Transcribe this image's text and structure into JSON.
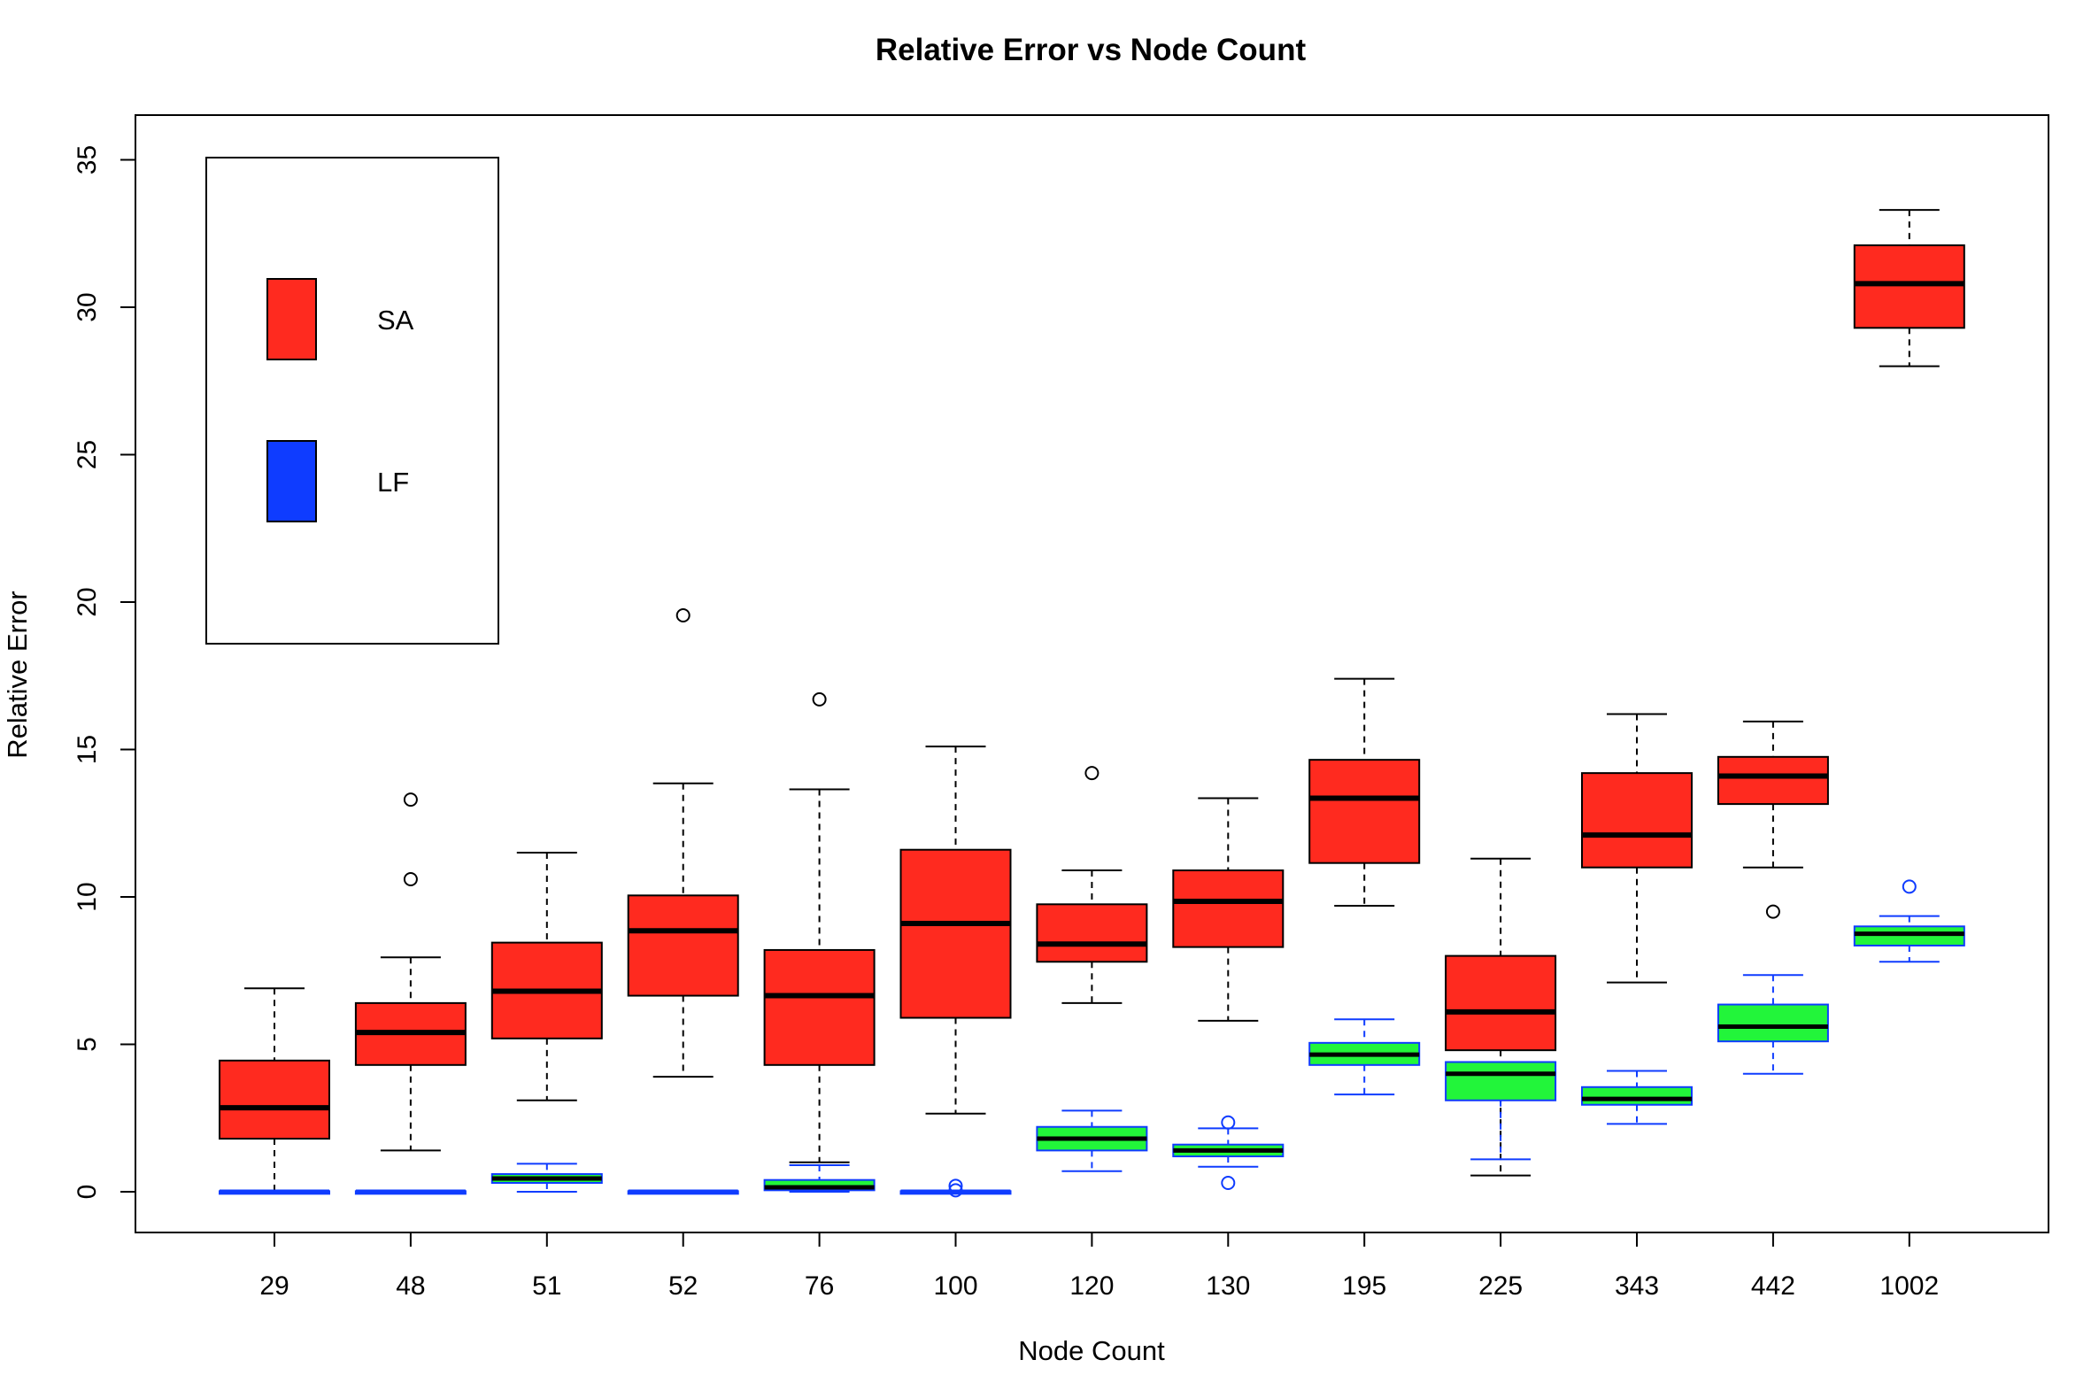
{
  "chart_data": {
    "type": "boxplot",
    "title": "Relative Error vs Node Count",
    "xlabel": "Node Count",
    "ylabel": "Relative Error",
    "ylim": [
      -1.5,
      36.5
    ],
    "yticks": [
      0,
      5,
      10,
      15,
      20,
      25,
      30,
      35
    ],
    "grid": false,
    "legend_position": "top-left",
    "categories": [
      "29",
      "48",
      "51",
      "52",
      "76",
      "100",
      "120",
      "130",
      "195",
      "225",
      "343",
      "442",
      "1002"
    ],
    "legend": [
      {
        "label": "SA",
        "color": "#ff2a1f"
      },
      {
        "label": "LF",
        "color": "#0f3cff"
      }
    ],
    "series": [
      {
        "name": "SA",
        "fill": "#ff2a1f",
        "border": "#000000",
        "boxes": [
          {
            "whisker_low": 0.0,
            "q1": 1.8,
            "median": 2.85,
            "q3": 4.45,
            "whisker_high": 6.9,
            "outliers": []
          },
          {
            "whisker_low": 1.4,
            "q1": 4.3,
            "median": 5.4,
            "q3": 6.4,
            "whisker_high": 7.95,
            "outliers": [
              10.6,
              13.3
            ]
          },
          {
            "whisker_low": 3.1,
            "q1": 5.2,
            "median": 6.8,
            "q3": 8.45,
            "whisker_high": 11.5,
            "outliers": []
          },
          {
            "whisker_low": 3.9,
            "q1": 6.65,
            "median": 8.85,
            "q3": 10.05,
            "whisker_high": 13.85,
            "outliers": [
              19.55
            ]
          },
          {
            "whisker_low": 1.0,
            "q1": 4.3,
            "median": 6.65,
            "q3": 8.2,
            "whisker_high": 13.65,
            "outliers": [
              16.7
            ]
          },
          {
            "whisker_low": 2.65,
            "q1": 5.9,
            "median": 9.1,
            "q3": 11.6,
            "whisker_high": 15.1,
            "outliers": []
          },
          {
            "whisker_low": 6.4,
            "q1": 7.8,
            "median": 8.4,
            "q3": 9.75,
            "whisker_high": 10.9,
            "outliers": [
              14.2
            ]
          },
          {
            "whisker_low": 5.8,
            "q1": 8.3,
            "median": 9.85,
            "q3": 10.9,
            "whisker_high": 13.35,
            "outliers": []
          },
          {
            "whisker_low": 9.7,
            "q1": 11.15,
            "median": 13.35,
            "q3": 14.65,
            "whisker_high": 17.4,
            "outliers": []
          },
          {
            "whisker_low": 0.55,
            "q1": 4.8,
            "median": 6.1,
            "q3": 8.0,
            "whisker_high": 11.3,
            "outliers": []
          },
          {
            "whisker_low": 7.1,
            "q1": 11.0,
            "median": 12.1,
            "q3": 14.2,
            "whisker_high": 16.2,
            "outliers": []
          },
          {
            "whisker_low": 11.0,
            "q1": 13.15,
            "median": 14.1,
            "q3": 14.75,
            "whisker_high": 15.95,
            "outliers": [
              9.5
            ]
          },
          {
            "whisker_low": 28.0,
            "q1": 29.3,
            "median": 30.8,
            "q3": 32.1,
            "whisker_high": 33.3,
            "outliers": []
          }
        ]
      },
      {
        "name": "LF",
        "fill": "#22f53a",
        "border": "#0f3cff",
        "boxes": [
          {
            "whisker_low": 0.0,
            "q1": 0.0,
            "median": 0.0,
            "q3": 0.02,
            "whisker_high": 0.02,
            "outliers": []
          },
          {
            "whisker_low": 0.0,
            "q1": 0.0,
            "median": 0.0,
            "q3": 0.02,
            "whisker_high": 0.02,
            "outliers": []
          },
          {
            "whisker_low": 0.0,
            "q1": 0.3,
            "median": 0.45,
            "q3": 0.6,
            "whisker_high": 0.95,
            "outliers": []
          },
          {
            "whisker_low": 0.0,
            "q1": 0.0,
            "median": 0.0,
            "q3": 0.02,
            "whisker_high": 0.02,
            "outliers": []
          },
          {
            "whisker_low": 0.0,
            "q1": 0.05,
            "median": 0.15,
            "q3": 0.4,
            "whisker_high": 0.9,
            "outliers": []
          },
          {
            "whisker_low": 0.0,
            "q1": 0.0,
            "median": 0.0,
            "q3": 0.02,
            "whisker_high": 0.02,
            "outliers": [
              0.05,
              0.2
            ]
          },
          {
            "whisker_low": 0.7,
            "q1": 1.4,
            "median": 1.8,
            "q3": 2.2,
            "whisker_high": 2.75,
            "outliers": []
          },
          {
            "whisker_low": 0.85,
            "q1": 1.2,
            "median": 1.4,
            "q3": 1.6,
            "whisker_high": 2.15,
            "outliers": [
              0.3,
              2.35
            ]
          },
          {
            "whisker_low": 3.3,
            "q1": 4.3,
            "median": 4.65,
            "q3": 5.05,
            "whisker_high": 5.85,
            "outliers": []
          },
          {
            "whisker_low": 1.1,
            "q1": 3.1,
            "median": 4.0,
            "q3": 4.4,
            "whisker_high": 4.4,
            "outliers": []
          },
          {
            "whisker_low": 2.3,
            "q1": 2.95,
            "median": 3.15,
            "q3": 3.55,
            "whisker_high": 4.1,
            "outliers": []
          },
          {
            "whisker_low": 4.0,
            "q1": 5.1,
            "median": 5.6,
            "q3": 6.35,
            "whisker_high": 7.35,
            "outliers": []
          },
          {
            "whisker_low": 7.8,
            "q1": 8.35,
            "median": 8.75,
            "q3": 9.0,
            "whisker_high": 9.35,
            "outliers": [
              10.35
            ]
          }
        ]
      }
    ]
  }
}
